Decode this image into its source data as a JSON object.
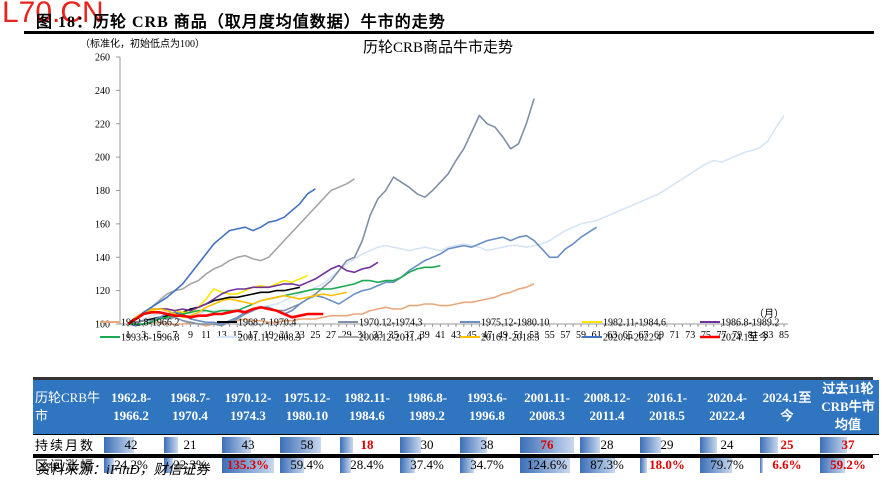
{
  "watermark": "L70.CN",
  "figure_title": "图 18：历轮 CRB 商品（取月度均值数据）牛市的走势",
  "source": "资料来源：iFinD，财信证券",
  "chart_data": {
    "type": "line",
    "title": "历轮CRB商品牛市走势",
    "ylabel": "（标准化，初始低点为100）",
    "xlabel": "（月）",
    "ylim": [
      100,
      260
    ],
    "yticks": [
      "100",
      "120",
      "140",
      "160",
      "180",
      "200",
      "220",
      "240",
      "260"
    ],
    "xlim": [
      1,
      85
    ],
    "xticks": [
      "1",
      "3",
      "5",
      "7",
      "9",
      "11",
      "13",
      "15",
      "17",
      "19",
      "21",
      "23",
      "25",
      "27",
      "29",
      "31",
      "33",
      "35",
      "37",
      "39",
      "41",
      "43",
      "45",
      "47",
      "49",
      "51",
      "53",
      "55",
      "57",
      "59",
      "61",
      "63",
      "65",
      "67",
      "69",
      "71",
      "73",
      "75",
      "77",
      "79",
      "81",
      "83",
      "85"
    ],
    "legend_position": "bottom",
    "series": [
      {
        "name": "1962.8-1966.2",
        "color": "#e9a77c",
        "values": [
          100,
          100,
          100,
          101,
          101,
          100,
          100,
          100,
          101,
          100,
          99,
          100,
          100,
          101,
          102,
          103,
          102,
          102,
          101,
          101,
          102,
          102,
          103,
          103,
          103,
          104,
          105,
          105,
          105,
          106,
          106,
          108,
          109,
          110,
          109,
          109,
          111,
          111,
          112,
          112,
          111,
          111,
          112,
          113,
          113,
          114,
          115,
          116,
          118,
          119,
          121,
          122,
          124
        ]
      },
      {
        "name": "1968.7-1970.4",
        "color": "#000000",
        "values": [
          100,
          101,
          102,
          103,
          104,
          105,
          106,
          107,
          109,
          110,
          112,
          114,
          115,
          116,
          116,
          117,
          118,
          119,
          119,
          120,
          120,
          121,
          122
        ]
      },
      {
        "name": "1970.12-1974.3",
        "color": "#7f8fa6",
        "values": [
          100,
          101,
          102,
          102,
          104,
          103,
          104,
          102,
          101,
          100,
          100,
          100,
          99,
          101,
          103,
          106,
          108,
          110,
          110,
          108,
          108,
          110,
          112,
          115,
          118,
          122,
          126,
          132,
          138,
          140,
          150,
          165,
          175,
          180,
          188,
          185,
          182,
          178,
          176,
          180,
          185,
          190,
          198,
          205,
          215,
          225,
          220,
          218,
          212,
          205,
          208,
          220,
          235
        ]
      },
      {
        "name": "1975.12-1980.10",
        "color": "#6a8fc4",
        "values": [
          100,
          99,
          100,
          101,
          104,
          106,
          107,
          106,
          103,
          102,
          101,
          101,
          100,
          102,
          104,
          107,
          108,
          110,
          110,
          108,
          106,
          108,
          112,
          115,
          117,
          116,
          114,
          112,
          115,
          118,
          120,
          121,
          123,
          125,
          125,
          128,
          132,
          135,
          138,
          140,
          142,
          145,
          146,
          147,
          146,
          148,
          150,
          151,
          152,
          150,
          152,
          153,
          150,
          145,
          140,
          140,
          145,
          148,
          152,
          155,
          158
        ]
      },
      {
        "name": "1982.11-1984.6",
        "color": "#ffe600",
        "values": [
          100,
          103,
          106,
          108,
          109,
          109,
          108,
          107,
          107,
          110,
          115,
          121,
          119,
          118,
          118,
          120,
          122,
          123,
          122,
          124,
          126,
          125,
          127,
          129
        ]
      },
      {
        "name": "1986.8-1989.2",
        "color": "#7030a0",
        "values": [
          100,
          104,
          107,
          109,
          109,
          109,
          108,
          109,
          108,
          110,
          112,
          115,
          118,
          120,
          121,
          121,
          122,
          122,
          122,
          123,
          124,
          124,
          123,
          125,
          127,
          130,
          133,
          135,
          132,
          131,
          133,
          134,
          137
        ]
      },
      {
        "name": "1993.6-1996.8",
        "color": "#1aab50",
        "values": [
          100,
          100,
          100,
          101,
          103,
          104,
          105,
          106,
          107,
          108,
          108,
          107,
          108,
          108,
          108,
          110,
          112,
          114,
          115,
          116,
          117,
          118,
          119,
          120,
          121,
          121,
          121,
          122,
          123,
          124,
          126,
          126,
          125,
          126,
          126,
          128,
          131,
          133,
          134,
          134,
          135
        ]
      },
      {
        "name": "2001.11-2008.3",
        "color": "#d6e5f5",
        "values": [
          100,
          101,
          103,
          105,
          106,
          108,
          108,
          107,
          106,
          106,
          108,
          108,
          108,
          107,
          107,
          108,
          109,
          110,
          111,
          112,
          114,
          116,
          118,
          120,
          122,
          124,
          128,
          132,
          136,
          139,
          142,
          144,
          146,
          147,
          146,
          145,
          144,
          145,
          146,
          145,
          144,
          146,
          147,
          148,
          147,
          146,
          144,
          145,
          146,
          147,
          147,
          146,
          147,
          148,
          150,
          153,
          156,
          158,
          160,
          161,
          162,
          164,
          166,
          168,
          170,
          172,
          174,
          176,
          178,
          181,
          184,
          187,
          190,
          193,
          196,
          198,
          197,
          199,
          201,
          203,
          204,
          206,
          210,
          218,
          225
        ]
      },
      {
        "name": "2008.12-2011.4",
        "color": "#a6a6a6",
        "values": [
          100,
          103,
          106,
          110,
          114,
          118,
          120,
          121,
          124,
          126,
          130,
          133,
          135,
          138,
          140,
          141,
          139,
          138,
          140,
          145,
          150,
          155,
          160,
          165,
          170,
          175,
          180,
          182,
          184,
          187
        ]
      },
      {
        "name": "2016.1-2018.5",
        "color": "#ffc000",
        "values": [
          100,
          104,
          107,
          109,
          109,
          108,
          106,
          104,
          105,
          107,
          110,
          112,
          114,
          115,
          114,
          113,
          112,
          114,
          115,
          116,
          117,
          116,
          115,
          116,
          117,
          118,
          117,
          118,
          119
        ]
      },
      {
        "name": "2020.4-2022.4",
        "color": "#4472c4",
        "values": [
          100,
          103,
          107,
          110,
          113,
          116,
          120,
          124,
          130,
          136,
          142,
          148,
          152,
          156,
          157,
          158,
          156,
          158,
          161,
          162,
          164,
          168,
          172,
          178,
          181
        ]
      },
      {
        "name": "2024.1至今",
        "color": "#ff0000",
        "values": [
          100,
          103,
          106,
          107,
          107,
          106,
          105,
          105,
          104,
          105,
          105,
          106,
          106,
          107,
          108,
          107,
          109,
          110,
          109,
          108,
          106,
          104,
          105,
          106,
          106,
          106
        ]
      }
    ]
  },
  "table": {
    "row_header": "历轮CRB牛市",
    "columns": [
      {
        "label1": "1962.8-",
        "label2": "1966.2",
        "months": "42",
        "gain": "24.2%",
        "months_red": false,
        "gain_red": false
      },
      {
        "label1": "1968.7-",
        "label2": "1970.4",
        "months": "21",
        "gain": "22.3%",
        "months_red": false,
        "gain_red": false
      },
      {
        "label1": "1970.12-",
        "label2": "1974.3",
        "months": "43",
        "gain": "135.3%",
        "months_red": false,
        "gain_red": true
      },
      {
        "label1": "1975.12-",
        "label2": "1980.10",
        "months": "58",
        "gain": "59.4%",
        "months_red": false,
        "gain_red": false
      },
      {
        "label1": "1982.11-",
        "label2": "1984.6",
        "months": "18",
        "gain": "28.4%",
        "months_red": true,
        "gain_red": false
      },
      {
        "label1": "1986.8-",
        "label2": "1989.2",
        "months": "30",
        "gain": "37.4%",
        "months_red": false,
        "gain_red": false
      },
      {
        "label1": "1993.6-",
        "label2": "1996.8",
        "months": "38",
        "gain": "34.7%",
        "months_red": false,
        "gain_red": false
      },
      {
        "label1": "2001.11-",
        "label2": "2008.3",
        "months": "76",
        "gain": "124.6%",
        "months_red": true,
        "gain_red": false
      },
      {
        "label1": "2008.12-",
        "label2": "2011.4",
        "months": "28",
        "gain": "87.3%",
        "months_red": false,
        "gain_red": false
      },
      {
        "label1": "2016.1-",
        "label2": "2018.5",
        "months": "29",
        "gain": "18.0%",
        "months_red": false,
        "gain_red": true
      },
      {
        "label1": "2020.4-",
        "label2": "2022.4",
        "months": "24",
        "gain": "79.7%",
        "months_red": false,
        "gain_red": false
      },
      {
        "label1": "2024.1至",
        "label2": "今",
        "months": "25",
        "gain": "6.6%",
        "months_red": true,
        "gain_red": true
      },
      {
        "label1": "过去11轮",
        "label2": "CRB牛市",
        "label3": "均值",
        "months": "37",
        "gain": "59.2%",
        "months_red": true,
        "gain_red": true
      }
    ],
    "row_labels": {
      "months": "持续月数",
      "gain": "区间涨幅"
    },
    "months_max": 76,
    "gain_max": 135.3
  }
}
